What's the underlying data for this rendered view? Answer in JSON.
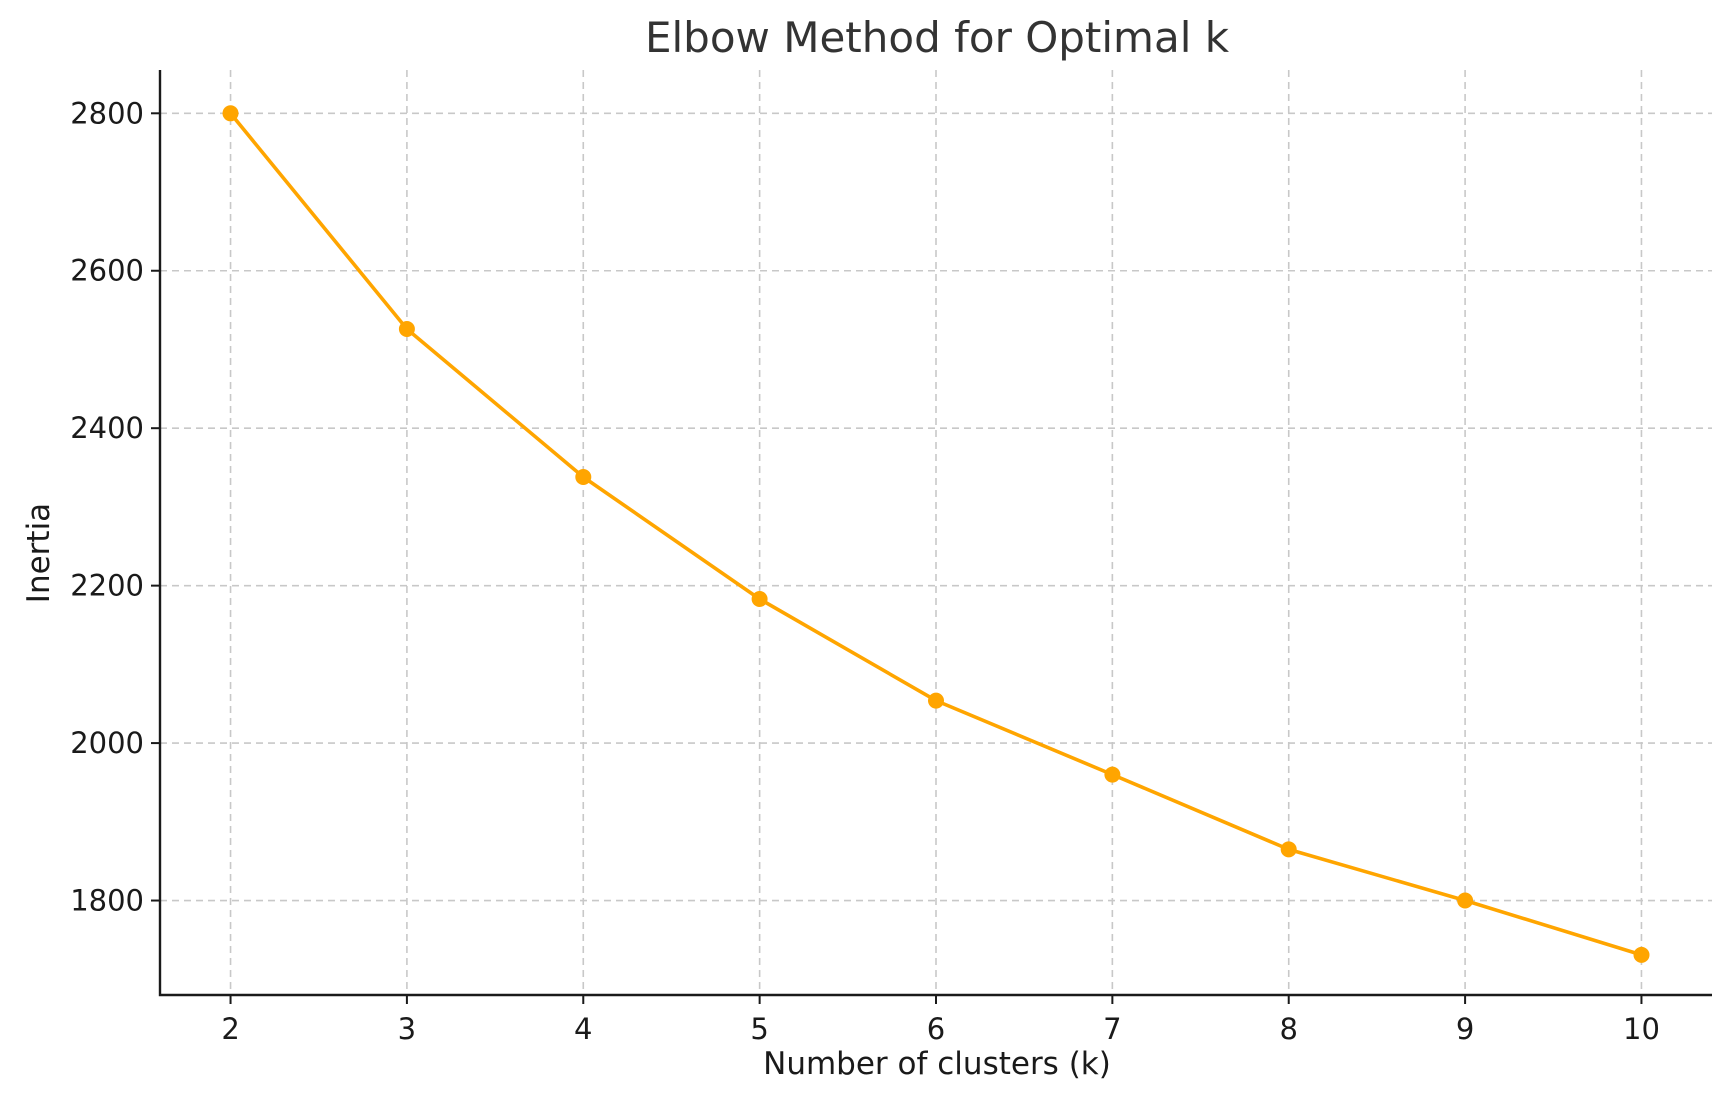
{
  "chart_data": {
    "type": "line",
    "title": "Elbow Method for Optimal k",
    "xlabel": "Number of clusters (k)",
    "ylabel": "Inertia",
    "x": [
      2,
      3,
      4,
      5,
      6,
      7,
      8,
      9,
      10
    ],
    "xticks": [
      "2",
      "3",
      "4",
      "5",
      "6",
      "7",
      "8",
      "9",
      "10"
    ],
    "yticks": [
      "1800",
      "2000",
      "2200",
      "2400",
      "2600",
      "2800"
    ],
    "xlim": [
      1.6,
      10.4
    ],
    "ylim": [
      1680,
      2855
    ],
    "series": [
      {
        "values": [
          2800,
          2526,
          2338,
          2183,
          2054,
          1960,
          1865,
          1800,
          1731
        ],
        "color": "#ffa500",
        "marker": "circle"
      }
    ],
    "grid": true
  }
}
